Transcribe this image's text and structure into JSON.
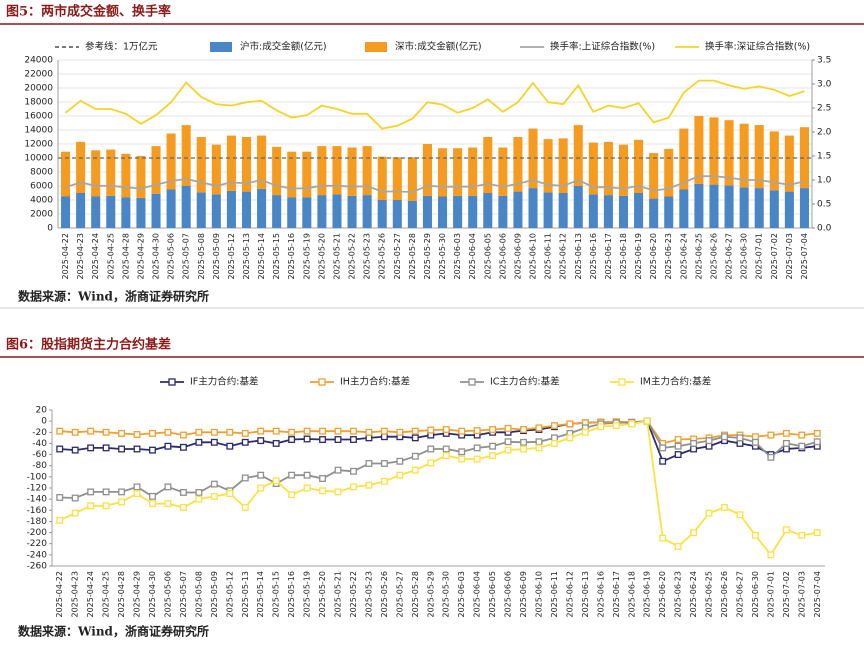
{
  "chart_data": [
    {
      "type": "bar",
      "title": "图5：两市成交金额、换手率",
      "source": "数据来源：Wind，浙商证券研究所",
      "stacked": true,
      "grid": true,
      "categories": [
        "2025-04-22",
        "2025-04-23",
        "2025-04-24",
        "2025-04-25",
        "2025-04-28",
        "2025-04-29",
        "2025-04-30",
        "2025-05-06",
        "2025-05-07",
        "2025-05-08",
        "2025-05-09",
        "2025-05-12",
        "2025-05-13",
        "2025-05-14",
        "2025-05-15",
        "2025-05-16",
        "2025-05-19",
        "2025-05-20",
        "2025-05-21",
        "2025-05-22",
        "2025-05-23",
        "2025-05-26",
        "2025-05-27",
        "2025-05-28",
        "2025-05-29",
        "2025-05-30",
        "2025-06-03",
        "2025-06-04",
        "2025-06-05",
        "2025-06-06",
        "2025-06-09",
        "2025-06-10",
        "2025-06-11",
        "2025-06-12",
        "2025-06-13",
        "2025-06-16",
        "2025-06-17",
        "2025-06-18",
        "2025-06-19",
        "2025-06-20",
        "2025-06-23",
        "2025-06-24",
        "2025-06-25",
        "2025-06-26",
        "2025-06-27",
        "2025-06-30",
        "2025-07-01",
        "2025-07-02",
        "2025-07-03",
        "2025-07-04"
      ],
      "reference_line": {
        "name": "参考线：1万亿元",
        "value": 10000,
        "color": "#666666"
      },
      "series": [
        {
          "name": "沪市:成交金额(亿元)",
          "type": "bar",
          "color": "#4a86c5",
          "values": [
            4500,
            5000,
            4500,
            4600,
            4400,
            4300,
            4900,
            5500,
            6000,
            5100,
            4800,
            5300,
            5200,
            5600,
            4700,
            4400,
            4400,
            4700,
            4800,
            4600,
            4700,
            4000,
            4000,
            3900,
            4600,
            4500,
            4600,
            4600,
            5000,
            4600,
            5200,
            5700,
            5100,
            5000,
            6000,
            4800,
            4700,
            4600,
            5000,
            4200,
            4500,
            5500,
            6300,
            6200,
            6100,
            5800,
            5700,
            5400,
            5200,
            5700
          ]
        },
        {
          "name": "深市:成交金额(亿元)",
          "type": "bar",
          "color": "#f59b1f",
          "values": [
            6400,
            7300,
            6600,
            6600,
            6200,
            6000,
            6800,
            8000,
            8700,
            7900,
            7100,
            7900,
            7800,
            7600,
            6900,
            6500,
            6500,
            7000,
            6900,
            6900,
            7000,
            6200,
            6100,
            6200,
            7400,
            6900,
            6800,
            6900,
            8000,
            6900,
            7800,
            8500,
            7600,
            7800,
            8700,
            7400,
            7600,
            7300,
            7600,
            6500,
            6800,
            8700,
            9700,
            9600,
            9300,
            9100,
            9000,
            8400,
            8000,
            8700
          ]
        },
        {
          "name": "换手率:上证综合指数(%)",
          "type": "line",
          "axis": "y2",
          "color": "#a6a6a6",
          "values": [
            0.85,
            0.95,
            0.88,
            0.88,
            0.85,
            0.82,
            0.9,
            0.98,
            1.02,
            0.95,
            0.88,
            0.95,
            0.93,
            1.0,
            0.88,
            0.82,
            0.83,
            0.88,
            0.88,
            0.86,
            0.87,
            0.76,
            0.76,
            0.75,
            0.88,
            0.86,
            0.86,
            0.86,
            0.92,
            0.86,
            0.92,
            1.0,
            0.9,
            0.88,
            1.0,
            0.85,
            0.85,
            0.82,
            0.88,
            0.78,
            0.82,
            0.95,
            1.08,
            1.08,
            1.05,
            1.0,
            1.0,
            0.95,
            0.9,
            0.97
          ]
        },
        {
          "name": "换手率:深证综合指数(%)",
          "type": "line",
          "axis": "y2",
          "color": "#f5d327",
          "values": [
            2.4,
            2.65,
            2.48,
            2.48,
            2.38,
            2.17,
            2.35,
            2.62,
            3.03,
            2.73,
            2.58,
            2.55,
            2.62,
            2.65,
            2.45,
            2.3,
            2.35,
            2.55,
            2.48,
            2.38,
            2.38,
            2.07,
            2.13,
            2.28,
            2.62,
            2.57,
            2.4,
            2.5,
            2.68,
            2.42,
            2.62,
            3.02,
            2.62,
            2.58,
            2.97,
            2.42,
            2.55,
            2.5,
            2.6,
            2.2,
            2.3,
            2.82,
            3.07,
            3.07,
            2.97,
            2.9,
            2.95,
            2.88,
            2.75,
            2.85
          ]
        }
      ],
      "ylim": [
        0,
        24000
      ],
      "yticks": [
        0,
        2000,
        4000,
        6000,
        8000,
        10000,
        12000,
        14000,
        16000,
        18000,
        20000,
        22000,
        24000
      ],
      "y2lim": [
        0,
        3.5
      ],
      "y2ticks": [
        {
          "value": 0,
          "label": "0.0"
        },
        {
          "value": 0.5,
          "label": "0.5"
        },
        {
          "value": 1,
          "label": "1.0"
        },
        {
          "value": 1.5,
          "label": "1.5"
        },
        {
          "value": 2,
          "label": "2.0"
        },
        {
          "value": 2.5,
          "label": "2.5"
        },
        {
          "value": 3,
          "label": "3.0"
        },
        {
          "value": 3.5,
          "label": "3.5"
        }
      ]
    },
    {
      "type": "line",
      "title": "图6：股指期货主力合约基差",
      "source": "数据来源：Wind，浙商证券研究所",
      "grid": false,
      "marker": "square",
      "categories": [
        "2025-04-22",
        "2025-04-23",
        "2025-04-24",
        "2025-04-25",
        "2025-04-28",
        "2025-04-29",
        "2025-04-30",
        "2025-05-06",
        "2025-05-07",
        "2025-05-08",
        "2025-05-09",
        "2025-05-12",
        "2025-05-13",
        "2025-05-14",
        "2025-05-15",
        "2025-05-16",
        "2025-05-19",
        "2025-05-20",
        "2025-05-21",
        "2025-05-22",
        "2025-05-23",
        "2025-05-26",
        "2025-05-27",
        "2025-05-28",
        "2025-05-29",
        "2025-05-30",
        "2025-06-03",
        "2025-06-04",
        "2025-06-05",
        "2025-06-06",
        "2025-06-09",
        "2025-06-10",
        "2025-06-11",
        "2025-06-12",
        "2025-06-13",
        "2025-06-16",
        "2025-06-17",
        "2025-06-18",
        "2025-06-19",
        "2025-06-20",
        "2025-06-23",
        "2025-06-24",
        "2025-06-25",
        "2025-06-26",
        "2025-06-27",
        "2025-06-30",
        "2025-07-01",
        "2025-07-02",
        "2025-07-03",
        "2025-07-04"
      ],
      "series": [
        {
          "name": "IF主力合约:基差",
          "color": "#2b2b6e",
          "values": [
            -50,
            -52,
            -48,
            -48,
            -50,
            -50,
            -52,
            -45,
            -47,
            -38,
            -38,
            -45,
            -38,
            -35,
            -40,
            -33,
            -32,
            -33,
            -33,
            -33,
            -30,
            -28,
            -28,
            -30,
            -25,
            -22,
            -25,
            -25,
            -20,
            -20,
            -17,
            -15,
            -10,
            -5,
            -3,
            -2,
            -2,
            -3,
            0,
            -72,
            -60,
            -50,
            -45,
            -35,
            -40,
            -45,
            -60,
            -50,
            -48,
            -45
          ]
        },
        {
          "name": "IH主力合约:基差",
          "color": "#f0a030",
          "values": [
            -18,
            -20,
            -18,
            -20,
            -22,
            -24,
            -22,
            -20,
            -25,
            -20,
            -20,
            -20,
            -22,
            -18,
            -18,
            -20,
            -18,
            -18,
            -18,
            -18,
            -20,
            -18,
            -20,
            -18,
            -16,
            -15,
            -18,
            -17,
            -15,
            -13,
            -15,
            -12,
            -8,
            -5,
            -3,
            -2,
            -1,
            -2,
            0,
            -40,
            -33,
            -32,
            -30,
            -25,
            -25,
            -28,
            -25,
            -22,
            -25,
            -22
          ]
        },
        {
          "name": "IC主力合约:基差",
          "color": "#909090",
          "values": [
            -137,
            -138,
            -127,
            -127,
            -127,
            -118,
            -135,
            -118,
            -128,
            -128,
            -113,
            -125,
            -102,
            -97,
            -112,
            -97,
            -97,
            -103,
            -88,
            -90,
            -76,
            -76,
            -72,
            -63,
            -50,
            -50,
            -55,
            -48,
            -45,
            -37,
            -38,
            -37,
            -30,
            -22,
            -12,
            -5,
            -3,
            -2,
            0,
            -48,
            -45,
            -40,
            -35,
            -28,
            -30,
            -38,
            -65,
            -40,
            -45,
            -37
          ]
        },
        {
          "name": "IM主力合约:基差",
          "color": "#ffe040",
          "values": [
            -178,
            -165,
            -152,
            -152,
            -145,
            -130,
            -148,
            -148,
            -155,
            -140,
            -135,
            -130,
            -155,
            -120,
            -107,
            -132,
            -120,
            -125,
            -127,
            -118,
            -115,
            -108,
            -97,
            -88,
            -75,
            -62,
            -68,
            -68,
            -62,
            -52,
            -50,
            -48,
            -40,
            -30,
            -20,
            -10,
            -8,
            -5,
            0,
            -210,
            -225,
            -200,
            -165,
            -155,
            -168,
            -205,
            -240,
            -195,
            -205,
            -200
          ]
        }
      ],
      "ylim": [
        -260,
        20
      ],
      "yticks": [
        20,
        0,
        -20,
        -40,
        -60,
        -80,
        -100,
        -120,
        -140,
        -160,
        -180,
        -200,
        -220,
        -240,
        -260
      ]
    }
  ]
}
